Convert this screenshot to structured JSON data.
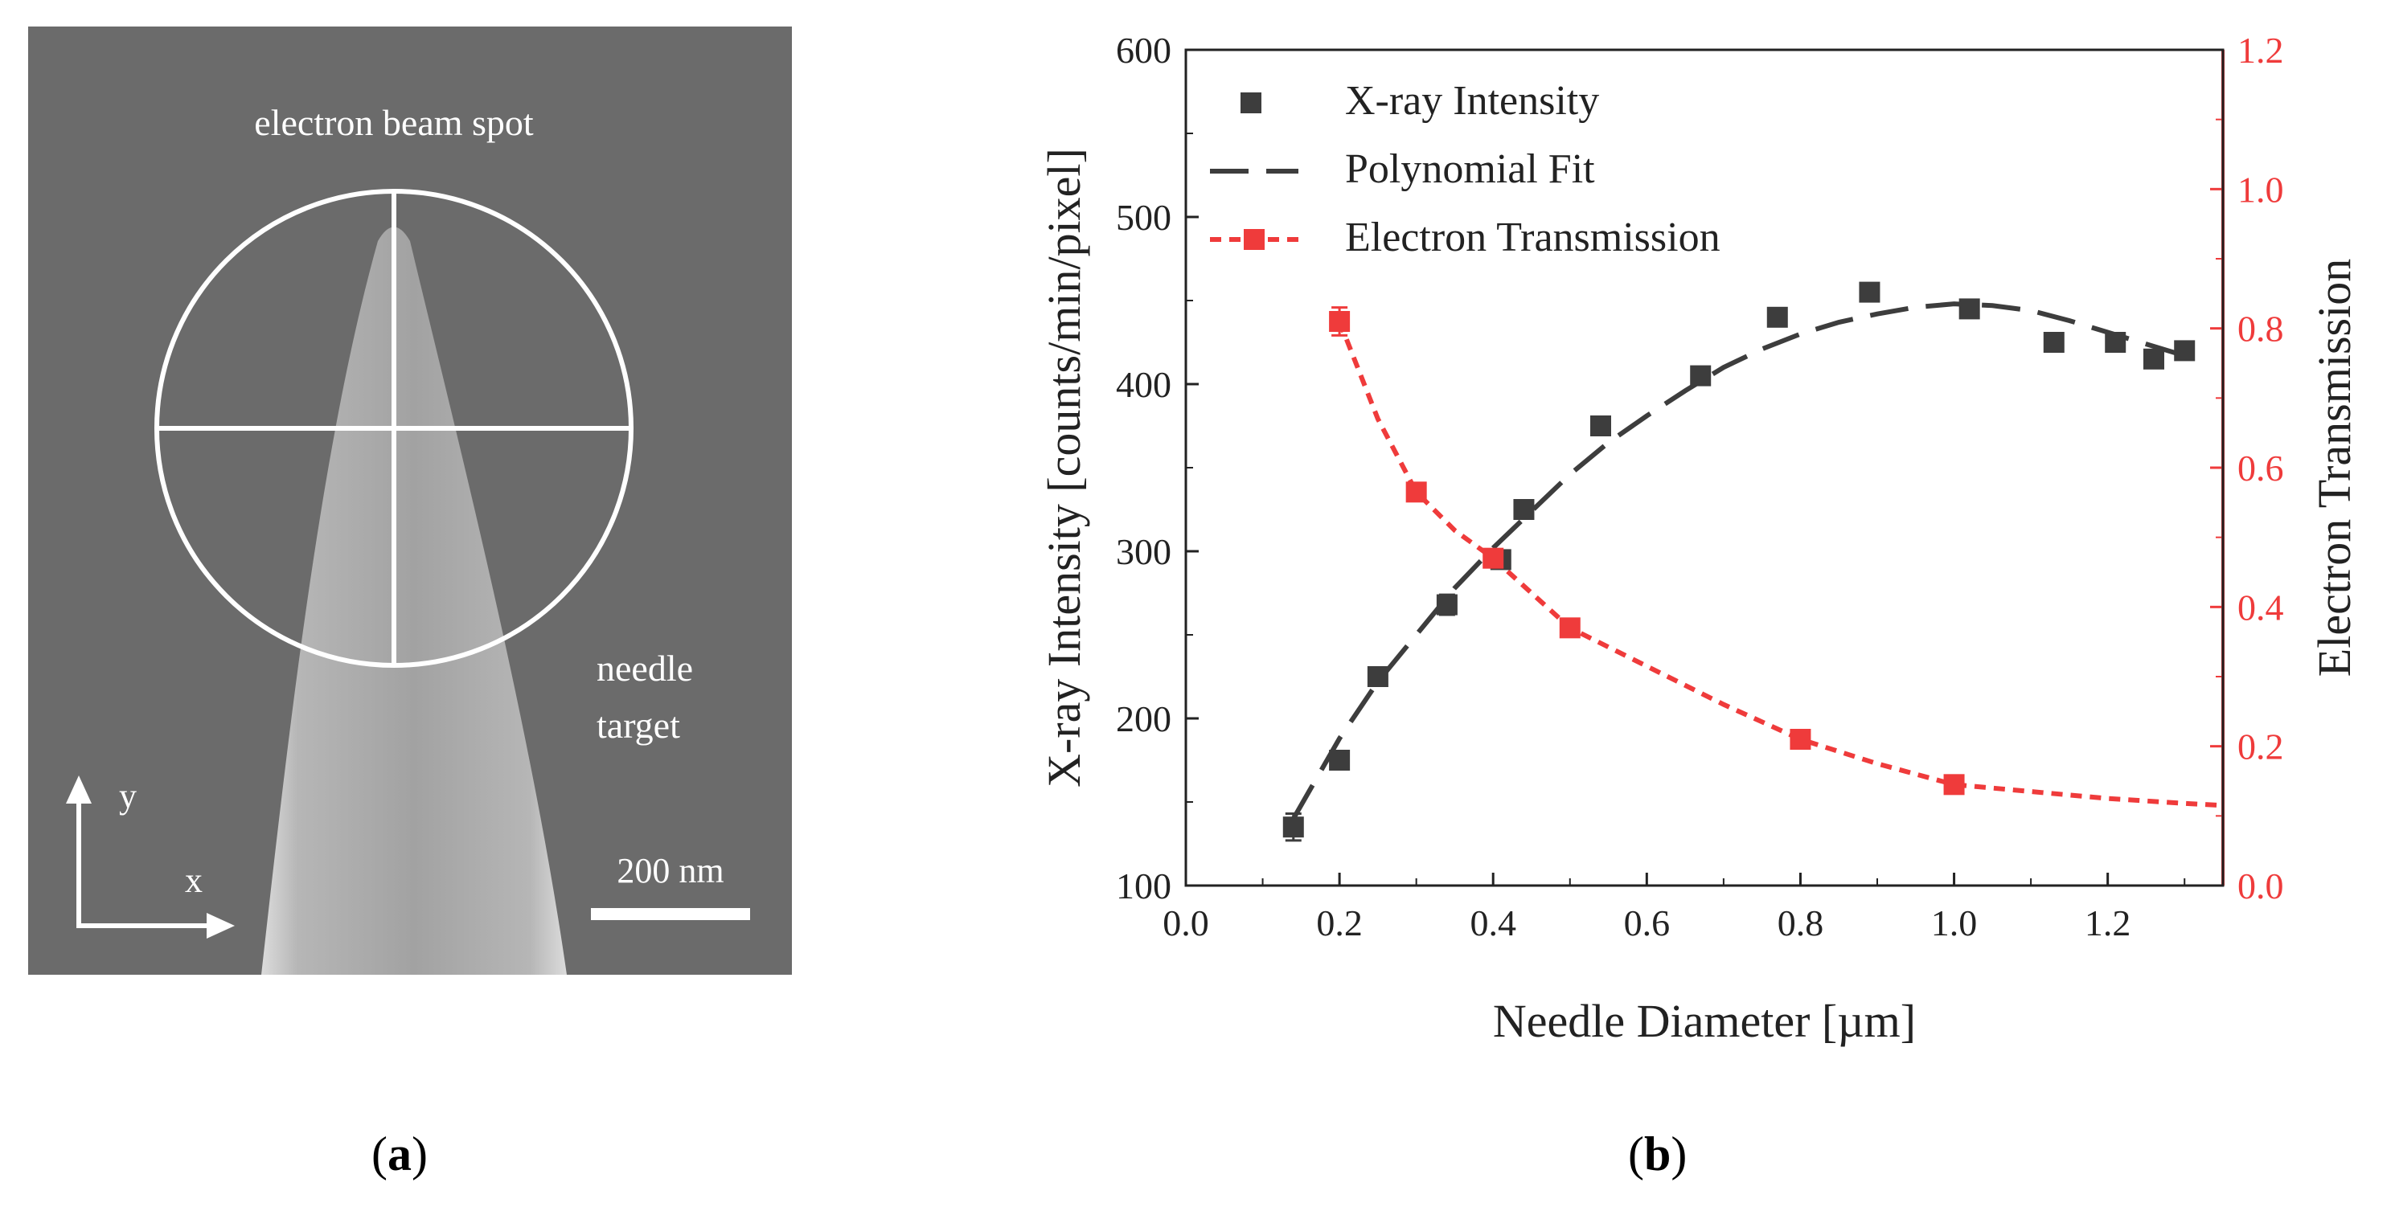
{
  "panel_a": {
    "label_open": "(",
    "label_letter": "a",
    "label_close": ")",
    "beam_label": "electron beam spot",
    "target_label_line1": "needle",
    "target_label_line2": "target",
    "axis_y": "y",
    "axis_x": "x",
    "scale_bar": "200 nm",
    "colors": {
      "background": "#6b6b6b",
      "needle": "#cfcfcf",
      "overlay": "#ffffff"
    }
  },
  "panel_b": {
    "label_open": "(",
    "label_letter": "b",
    "label_close": ")"
  },
  "chart_data": {
    "type": "scatter",
    "xlabel": "Needle Diameter [µm]",
    "ylabel": "X-ray Intensity [counts/min/pixel]",
    "y2label": "Electron Transmission",
    "xlim": [
      0.0,
      1.35
    ],
    "ylim": [
      100,
      600
    ],
    "y2lim": [
      0.0,
      1.2
    ],
    "xticks": [
      "0.0",
      "0.2",
      "0.4",
      "0.6",
      "0.8",
      "1.0",
      "1.2"
    ],
    "yticks": [
      "100",
      "200",
      "300",
      "400",
      "500",
      "600"
    ],
    "y2ticks": [
      "0.0",
      "0.2",
      "0.4",
      "0.6",
      "0.8",
      "1.0",
      "1.2"
    ],
    "legend_position": "top-left",
    "colors": {
      "xray": "#3d3d3d",
      "transmission": "#ef3b3b"
    },
    "series": [
      {
        "name": "X-ray Intensity",
        "axis": "left",
        "marker": "square",
        "x": [
          0.14,
          0.2,
          0.25,
          0.34,
          0.41,
          0.44,
          0.54,
          0.67,
          0.77,
          0.89,
          1.02,
          1.13,
          1.21,
          1.26,
          1.3
        ],
        "y": [
          135,
          175,
          225,
          268,
          295,
          325,
          375,
          405,
          440,
          455,
          445,
          425,
          425,
          415,
          420
        ],
        "err": [
          8,
          5,
          5,
          6,
          5,
          5,
          5,
          5,
          5,
          5,
          5,
          5,
          5,
          5,
          5
        ]
      },
      {
        "name": "Polynomial Fit",
        "axis": "left",
        "line": "long-dash",
        "x": [
          0.14,
          0.2,
          0.25,
          0.3,
          0.35,
          0.4,
          0.45,
          0.5,
          0.55,
          0.6,
          0.65,
          0.7,
          0.75,
          0.8,
          0.85,
          0.9,
          0.95,
          1.0,
          1.05,
          1.1,
          1.15,
          1.2,
          1.25,
          1.3
        ],
        "y": [
          140,
          188,
          222,
          250,
          278,
          302,
          324,
          346,
          365,
          381,
          396,
          410,
          421,
          430,
          437,
          442,
          446,
          448,
          447,
          444,
          438,
          431,
          424,
          417
        ]
      },
      {
        "name": "Electron Transmission",
        "axis": "right",
        "marker": "square",
        "line": "short-dash",
        "x": [
          0.2,
          0.3,
          0.4,
          0.5,
          0.8,
          1.0
        ],
        "y": [
          0.81,
          0.565,
          0.47,
          0.37,
          0.21,
          0.145
        ],
        "err": [
          0.02,
          0.01,
          0.01,
          0.01,
          0.01,
          0.01
        ],
        "curve_x": [
          0.2,
          0.25,
          0.3,
          0.35,
          0.4,
          0.45,
          0.5,
          0.6,
          0.7,
          0.8,
          0.9,
          1.0,
          1.1,
          1.2,
          1.3,
          1.35
        ],
        "curve_y": [
          0.81,
          0.67,
          0.565,
          0.51,
          0.47,
          0.42,
          0.37,
          0.315,
          0.26,
          0.21,
          0.175,
          0.145,
          0.135,
          0.125,
          0.118,
          0.115
        ]
      }
    ]
  }
}
